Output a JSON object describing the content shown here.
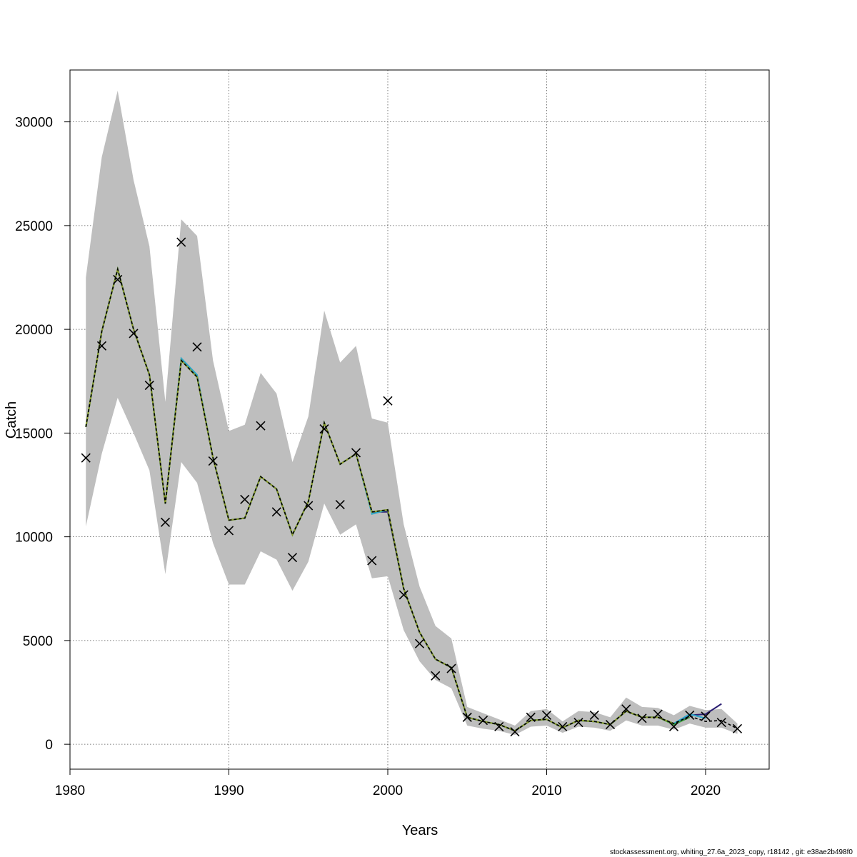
{
  "chart_data": {
    "type": "line",
    "title": "",
    "xlabel": "Years",
    "ylabel": "Catch",
    "xlim": [
      1980,
      2024
    ],
    "ylim": [
      -1200,
      32500
    ],
    "xticks": [
      1980,
      1990,
      2000,
      2010,
      2020
    ],
    "yticks": [
      0,
      5000,
      10000,
      15000,
      20000,
      25000,
      30000
    ],
    "grid": true,
    "footer": "stockassessment.org, whiting_27.6a_2023_copy, r18142 , git: e38ae2b498f0",
    "colors": {
      "band": "#bebebe",
      "observed": "#000000",
      "fit_lines": [
        "#2b1f73",
        "#2aa7c9",
        "#3a9e3a",
        "#8c9a2a"
      ]
    },
    "years": [
      1981,
      1982,
      1983,
      1984,
      1985,
      1986,
      1987,
      1988,
      1989,
      1990,
      1991,
      1992,
      1993,
      1994,
      1995,
      1996,
      1997,
      1998,
      1999,
      2000,
      2001,
      2002,
      2003,
      2004,
      2005,
      2006,
      2007,
      2008,
      2009,
      2010,
      2011,
      2012,
      2013,
      2014,
      2015,
      2016,
      2017,
      2018,
      2019,
      2020,
      2021,
      2022
    ],
    "band_upper": [
      22500,
      28300,
      31500,
      27200,
      24000,
      16500,
      25300,
      24500,
      18500,
      15100,
      15400,
      17900,
      16900,
      13600,
      15800,
      20900,
      18400,
      19200,
      15700,
      15500,
      10600,
      7600,
      5700,
      5100,
      1800,
      1500,
      1200,
      900,
      1600,
      1700,
      1100,
      1600,
      1550,
      1300,
      2250,
      1800,
      1750,
      1400,
      1850,
      1650,
      1700,
      1000
    ],
    "band_lower": [
      10500,
      14000,
      16700,
      15000,
      13200,
      8200,
      13600,
      12600,
      9700,
      7700,
      7700,
      9300,
      8900,
      7400,
      8800,
      11600,
      10100,
      10600,
      8000,
      8100,
      5500,
      4000,
      3100,
      2700,
      900,
      750,
      650,
      450,
      850,
      900,
      550,
      850,
      800,
      650,
      1150,
      900,
      900,
      700,
      1000,
      800,
      800,
      500
    ],
    "fits": [
      {
        "values": [
          15300,
          19900,
          22900,
          20000,
          17800,
          11600,
          18500,
          17700,
          13800,
          10800,
          10900,
          12900,
          12300,
          10100,
          11700,
          15500,
          13500,
          14000,
          11200,
          11200,
          7500,
          5400,
          4100,
          3700,
          1300,
          1100,
          950,
          650,
          1150,
          1200,
          800,
          1150,
          1100,
          950,
          1600,
          1300,
          1300,
          1000,
          1400,
          1450,
          1950,
          null
        ]
      },
      {
        "values": [
          15300,
          19900,
          22900,
          20000,
          17800,
          11600,
          18600,
          17800,
          13800,
          10800,
          10900,
          12900,
          12300,
          10100,
          11700,
          15500,
          13500,
          14000,
          11100,
          11300,
          7500,
          5400,
          4100,
          3700,
          1300,
          1100,
          950,
          650,
          1150,
          1200,
          800,
          1150,
          1100,
          950,
          1600,
          1300,
          1300,
          1000,
          1450,
          1250,
          null,
          null
        ]
      },
      {
        "values": [
          15300,
          19900,
          22900,
          20000,
          17800,
          11600,
          18500,
          17700,
          13800,
          10800,
          10900,
          12900,
          12300,
          10100,
          11700,
          15500,
          13500,
          14000,
          11200,
          11300,
          7500,
          5400,
          4100,
          3700,
          1300,
          1100,
          950,
          650,
          1150,
          1200,
          800,
          1150,
          1100,
          950,
          1600,
          1300,
          1300,
          950,
          1300,
          null,
          null,
          null
        ]
      },
      {
        "values": [
          15300,
          19900,
          22900,
          20000,
          17800,
          11600,
          18500,
          17700,
          13800,
          10800,
          10900,
          12900,
          12300,
          10100,
          11700,
          15500,
          13500,
          14000,
          11200,
          11300,
          7500,
          5400,
          4100,
          3700,
          1300,
          1100,
          950,
          650,
          1150,
          1200,
          800,
          1150,
          1100,
          950,
          1600,
          1300,
          1300,
          1000,
          null,
          null,
          null,
          null
        ]
      }
    ],
    "best_fit": [
      15300,
      19900,
      22900,
      20000,
      17800,
      11600,
      18500,
      17700,
      13800,
      10800,
      10900,
      12900,
      12300,
      10100,
      11700,
      15500,
      13500,
      14000,
      11200,
      11300,
      7500,
      5400,
      4100,
      3700,
      1300,
      1100,
      950,
      650,
      1150,
      1200,
      800,
      1150,
      1100,
      950,
      1600,
      1300,
      1300,
      1000,
      1350,
      1100,
      1150,
      750
    ],
    "observed": [
      13800,
      19200,
      22400,
      19800,
      17300,
      10700,
      24200,
      19150,
      13650,
      10300,
      11800,
      15350,
      11200,
      9000,
      11500,
      15200,
      11550,
      14050,
      8850,
      16550,
      7200,
      4850,
      3300,
      3650,
      1300,
      1150,
      850,
      600,
      1300,
      1400,
      850,
      1050,
      1400,
      950,
      1700,
      1250,
      1450,
      850,
      1400,
      1350,
      1050,
      750
    ]
  }
}
